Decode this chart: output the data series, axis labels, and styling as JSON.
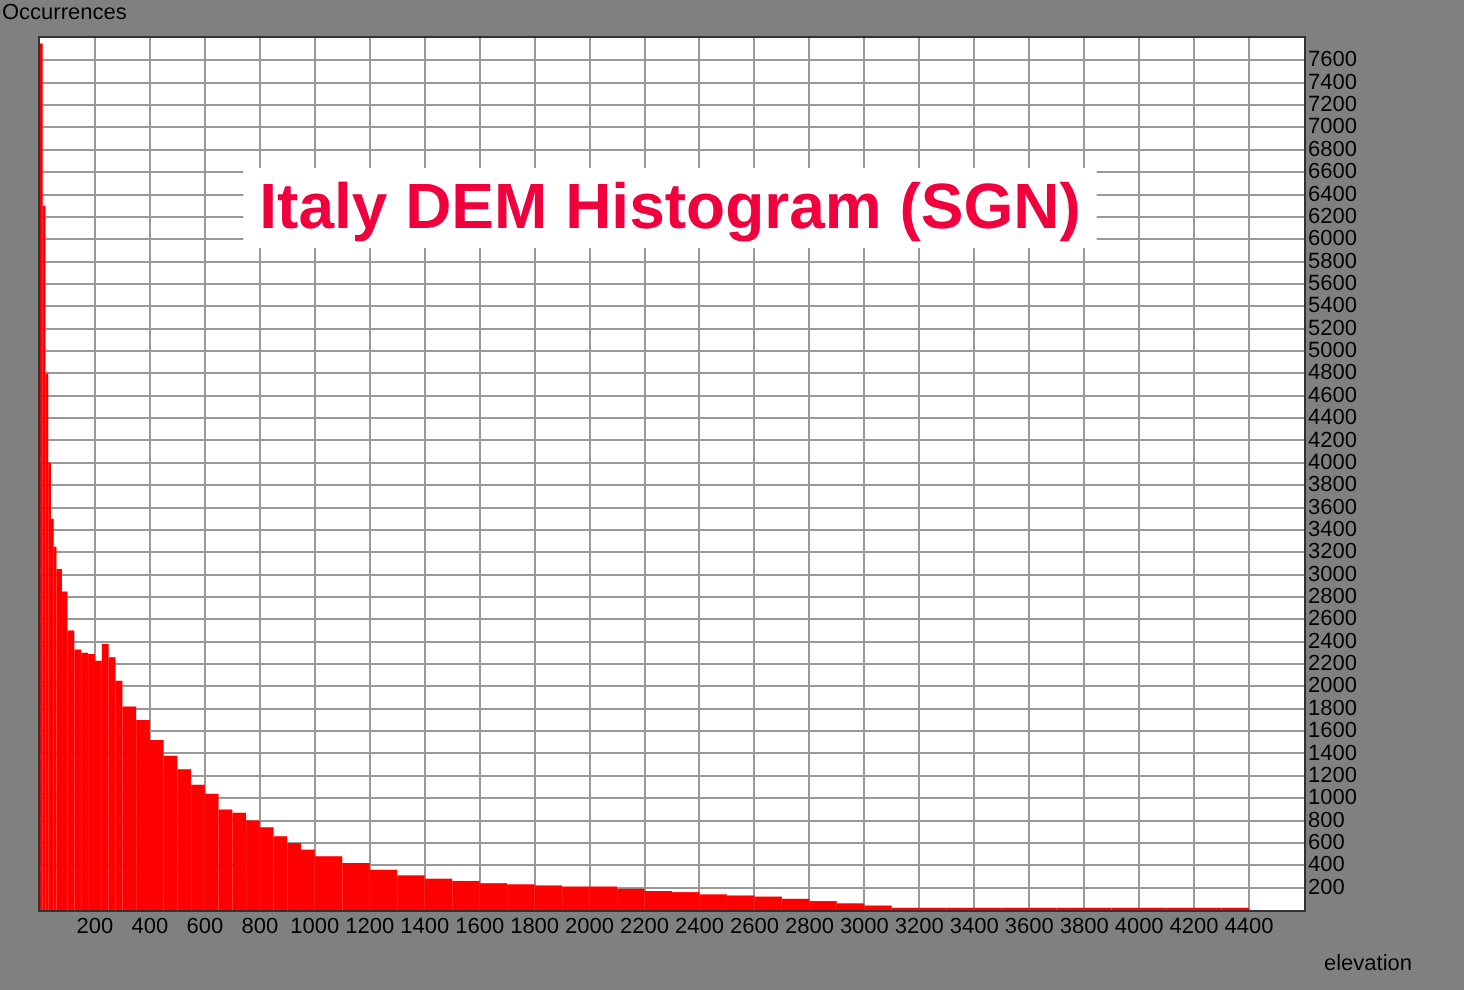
{
  "chart_data": {
    "type": "histogram",
    "title": "Italy DEM Histogram (SGN)",
    "xlabel": "elevation",
    "ylabel": "Occurrences",
    "color": "#ff0000",
    "bins": [
      0,
      10,
      20,
      30,
      40,
      50,
      60,
      80,
      100,
      125,
      150,
      175,
      200,
      225,
      250,
      275,
      300,
      350,
      400,
      450,
      500,
      550,
      600,
      650,
      700,
      750,
      800,
      850,
      900,
      950,
      1000,
      1100,
      1200,
      1300,
      1400,
      1500,
      1600,
      1700,
      1800,
      1900,
      2000,
      2100,
      2200,
      2300,
      2400,
      2500,
      2600,
      2700,
      2800,
      2900,
      3000,
      3100,
      3200,
      3300,
      3400,
      3500,
      3600,
      3700,
      3800,
      3900,
      4000,
      4100,
      4200,
      4300,
      4400
    ],
    "values": [
      7750,
      6300,
      4800,
      4000,
      3500,
      3250,
      3050,
      2850,
      2500,
      2330,
      2300,
      2290,
      2230,
      2380,
      2260,
      2050,
      1820,
      1700,
      1520,
      1380,
      1260,
      1120,
      1040,
      900,
      870,
      800,
      740,
      660,
      600,
      540,
      480,
      420,
      360,
      310,
      280,
      260,
      240,
      230,
      220,
      210,
      210,
      190,
      170,
      160,
      140,
      130,
      120,
      100,
      80,
      60,
      40,
      20,
      20,
      20,
      20,
      20,
      20,
      20,
      20,
      20,
      20,
      20,
      20,
      20
    ],
    "xlim": [
      0,
      4600
    ],
    "ylim": [
      0,
      7800
    ],
    "xticks": [
      200,
      400,
      600,
      800,
      1000,
      1200,
      1400,
      1600,
      1800,
      2000,
      2200,
      2400,
      2600,
      2800,
      3000,
      3200,
      3400,
      3600,
      3800,
      4000,
      4200,
      4400
    ],
    "yticks": [
      200,
      400,
      600,
      800,
      1000,
      1200,
      1400,
      1600,
      1800,
      2000,
      2200,
      2400,
      2600,
      2800,
      3000,
      3200,
      3400,
      3600,
      3800,
      4000,
      4200,
      4400,
      4600,
      4800,
      5000,
      5200,
      5400,
      5600,
      5800,
      6000,
      6200,
      6400,
      6600,
      6800,
      7000,
      7200,
      7400,
      7600
    ],
    "grid": true
  }
}
